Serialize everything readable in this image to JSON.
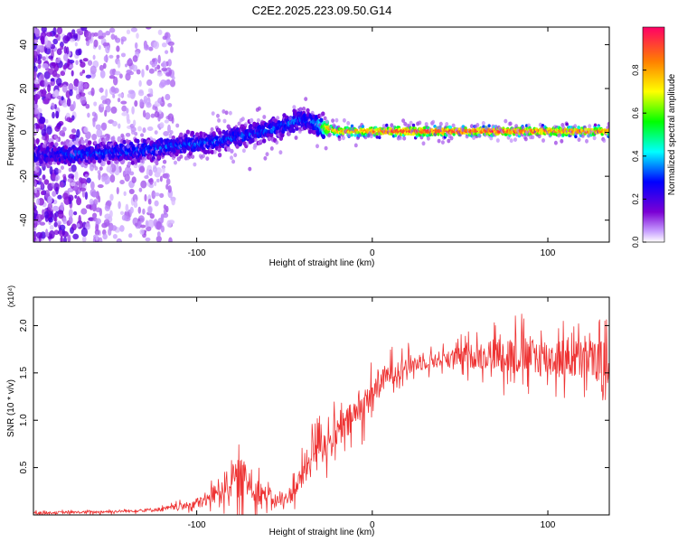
{
  "title": "C2E2.2025.223.09.50.G14",
  "chart_data": [
    {
      "type": "heatmap",
      "title": "",
      "xlabel": "Height of straight line (km)",
      "ylabel": "Frequency (Hz)",
      "xlim": [
        -193,
        135
      ],
      "ylim": [
        -50,
        48
      ],
      "x_ticks": [
        -100,
        0,
        100
      ],
      "x_tick_labels": [
        "-100",
        "0",
        "100"
      ],
      "y_ticks": [
        -40,
        -20,
        0,
        20,
        40
      ],
      "y_tick_labels": [
        "-40",
        "-20",
        "0",
        "20",
        "40"
      ],
      "grid": false,
      "colorbar": {
        "label": "Normalized spectral amplitude",
        "range": [
          0.0,
          1.0
        ],
        "ticks": [
          0.0,
          0.2,
          0.4,
          0.6,
          0.8
        ],
        "tick_labels": [
          "0.0",
          "0.2",
          "0.4",
          "0.6",
          "0.8"
        ],
        "colors": [
          "#ffffff",
          "#7b00d4",
          "#0000ff",
          "#00ffff",
          "#00ff00",
          "#ffff00",
          "#ff8000",
          "#ff0066"
        ]
      },
      "ridge": {
        "x": [
          -193,
          -170,
          -150,
          -130,
          -110,
          -90,
          -70,
          -60,
          -50,
          -45,
          -40,
          -35,
          -30,
          -25,
          -20,
          -10,
          0,
          20,
          50,
          80,
          100,
          120,
          135
        ],
        "y": [
          -10,
          -10,
          -9,
          -8,
          -6,
          -4,
          -1,
          1,
          3,
          5,
          6,
          5,
          3,
          2,
          0.5,
          0.5,
          0.5,
          0.5,
          0.5,
          0.5,
          0.5,
          0.5,
          0.5
        ],
        "amplitude": [
          0.25,
          0.3,
          0.3,
          0.3,
          0.3,
          0.3,
          0.3,
          0.3,
          0.3,
          0.35,
          0.3,
          0.3,
          0.4,
          0.8,
          0.8,
          0.82,
          0.88,
          0.95,
          0.95,
          0.92,
          0.9,
          0.88,
          0.85
        ]
      }
    },
    {
      "type": "line",
      "title": "",
      "xlabel": "Height of straight line (km)",
      "ylabel": "SNR (10 * v/v)",
      "y_multiplier_label": "(x10⁴)",
      "xlim": [
        -193,
        135
      ],
      "ylim": [
        0,
        2.3
      ],
      "x_ticks": [
        -100,
        0,
        100
      ],
      "x_tick_labels": [
        "-100",
        "0",
        "100"
      ],
      "y_ticks": [
        0.5,
        1.0,
        1.5,
        2.0
      ],
      "y_tick_labels": [
        "0.5",
        "1.0",
        "1.5",
        "2.0"
      ],
      "grid": false,
      "series": [
        {
          "color": "#ee3333",
          "x": [
            -193,
            -160,
            -140,
            -120,
            -105,
            -95,
            -90,
            -85,
            -80,
            -75,
            -70,
            -65,
            -60,
            -55,
            -50,
            -45,
            -40,
            -35,
            -32,
            -30,
            -28,
            -25,
            -20,
            -15,
            -10,
            -5,
            0,
            5,
            10,
            20,
            30,
            40,
            50,
            60,
            70,
            80,
            90,
            100,
            110,
            120,
            135
          ],
          "y": [
            0.02,
            0.03,
            0.04,
            0.06,
            0.1,
            0.15,
            0.22,
            0.3,
            0.35,
            0.4,
            0.33,
            0.25,
            0.2,
            0.15,
            0.15,
            0.25,
            0.4,
            0.6,
            0.8,
            0.85,
            0.75,
            0.75,
            0.85,
            0.95,
            1.05,
            1.15,
            1.3,
            1.4,
            1.5,
            1.58,
            1.62,
            1.65,
            1.67,
            1.68,
            1.7,
            1.69,
            1.68,
            1.66,
            1.65,
            1.64,
            1.63
          ],
          "noise": [
            0.02,
            0.02,
            0.02,
            0.03,
            0.05,
            0.1,
            0.15,
            0.2,
            0.25,
            0.3,
            0.25,
            0.2,
            0.12,
            0.1,
            0.1,
            0.15,
            0.2,
            0.3,
            0.35,
            0.3,
            0.25,
            0.25,
            0.25,
            0.25,
            0.25,
            0.25,
            0.22,
            0.2,
            0.18,
            0.15,
            0.12,
            0.12,
            0.15,
            0.2,
            0.25,
            0.3,
            0.3,
            0.3,
            0.3,
            0.3,
            0.3
          ]
        }
      ]
    }
  ]
}
